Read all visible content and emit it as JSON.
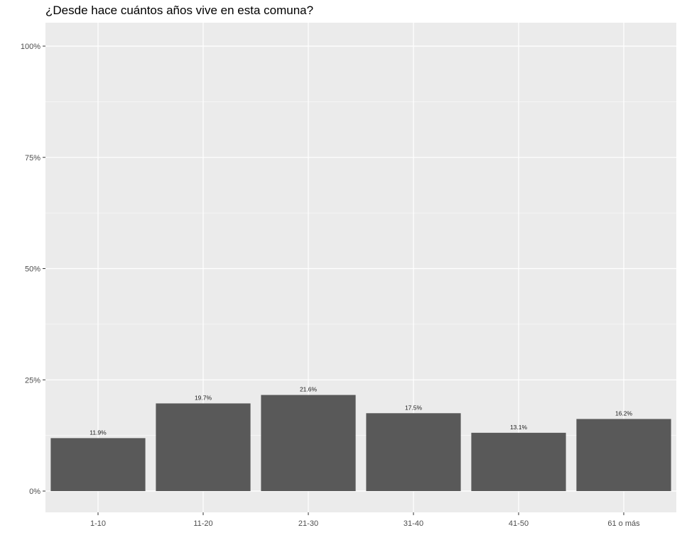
{
  "chart_data": {
    "type": "bar",
    "title": "¿Desde hace cuántos años vive en esta comuna?",
    "xlabel": "",
    "ylabel": "",
    "categories": [
      "1-10",
      "11-20",
      "21-30",
      "31-40",
      "41-50",
      "61 o más"
    ],
    "values": [
      11.9,
      19.7,
      21.6,
      17.5,
      13.1,
      16.2
    ],
    "data_labels": [
      "11.9%",
      "19.7%",
      "21.6%",
      "17.5%",
      "13.1%",
      "16.2%"
    ],
    "ylim": [
      0,
      100
    ],
    "yticks": [
      0,
      25,
      50,
      75,
      100
    ],
    "ytick_labels": [
      "0%",
      "25%",
      "50%",
      "75%",
      "100%"
    ],
    "grid": true,
    "legend": "none",
    "colors": {
      "bar": "#595959",
      "panel": "#ebebeb",
      "grid_major": "#ffffff",
      "axis_text": "#4d4d4d"
    }
  }
}
